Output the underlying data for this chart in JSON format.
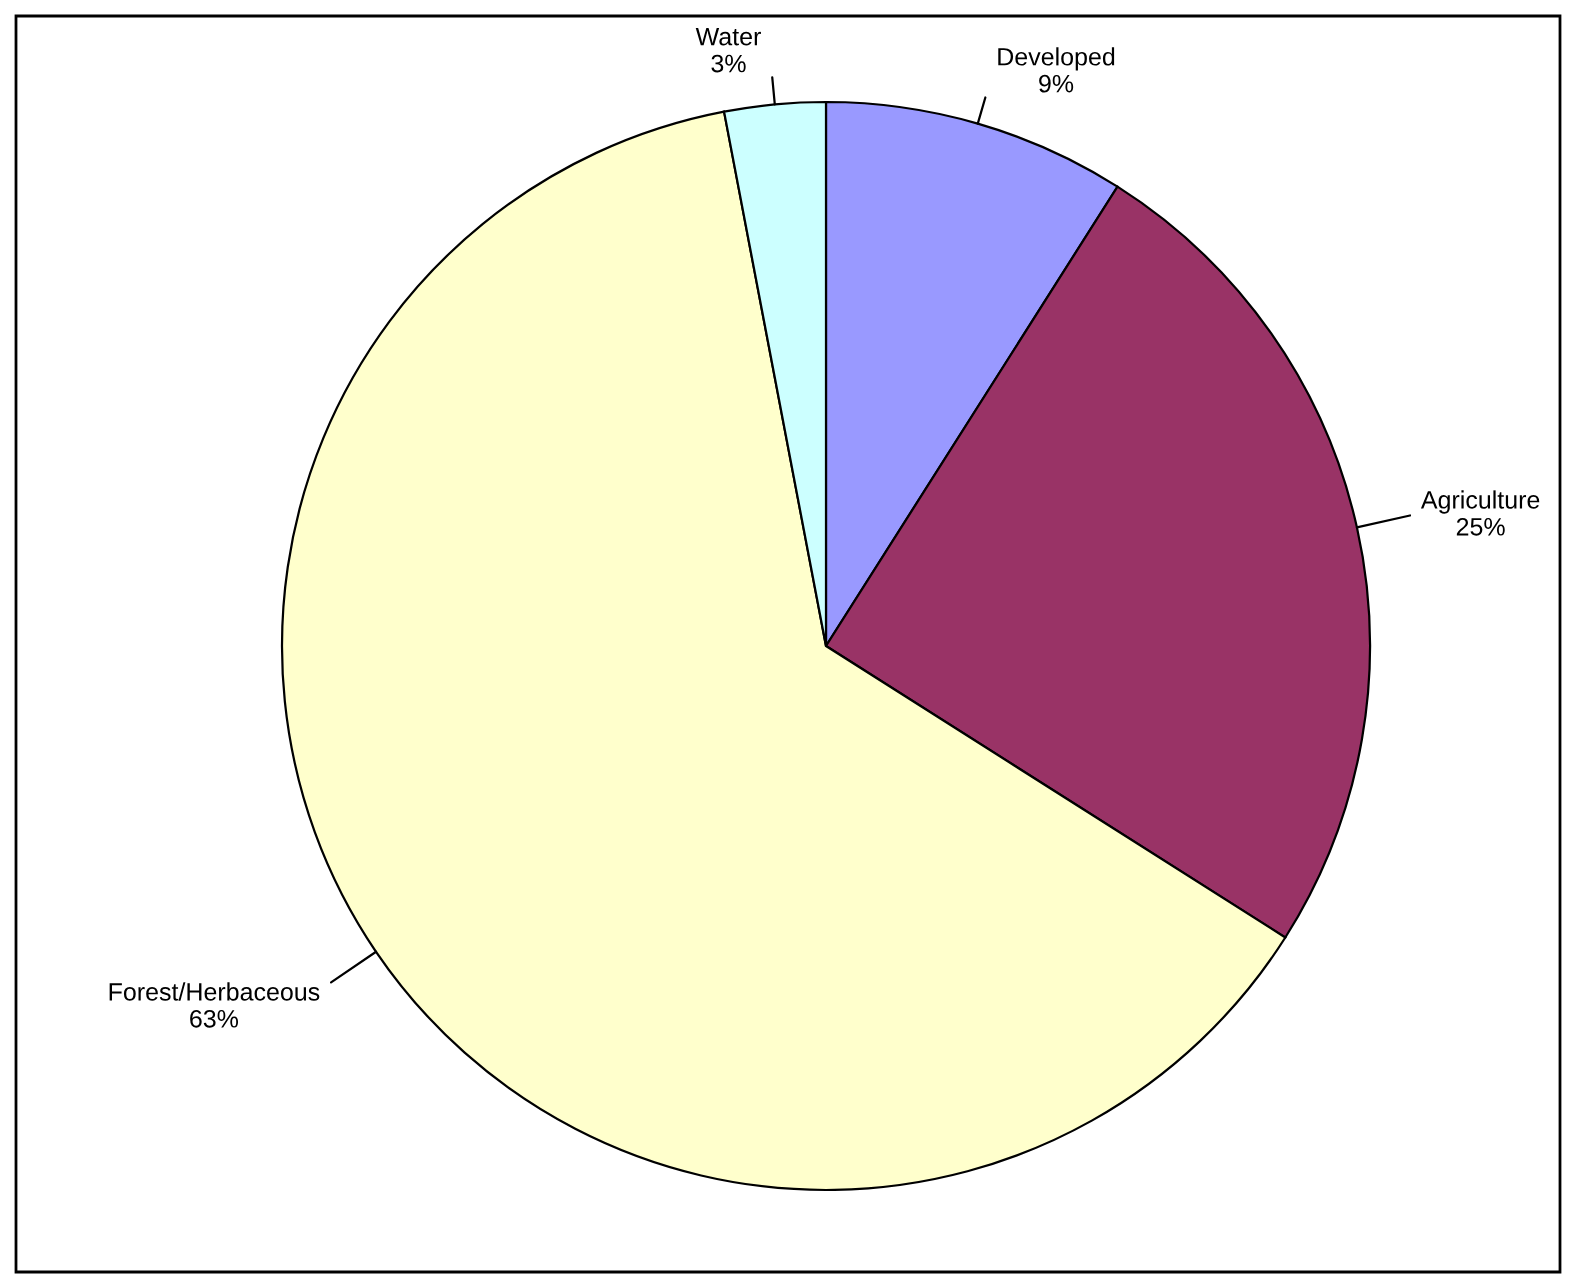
{
  "chart_data": {
    "type": "pie",
    "categories": [
      "Developed",
      "Agriculture",
      "Forest/Herbaceous",
      "Water"
    ],
    "values": [
      9,
      25,
      63,
      3
    ],
    "value_labels": [
      "9%",
      "25%",
      "63%",
      "3%"
    ],
    "colors": [
      "#9999ff",
      "#993366",
      "#ffffcc",
      "#ccffff"
    ],
    "legend": false
  }
}
